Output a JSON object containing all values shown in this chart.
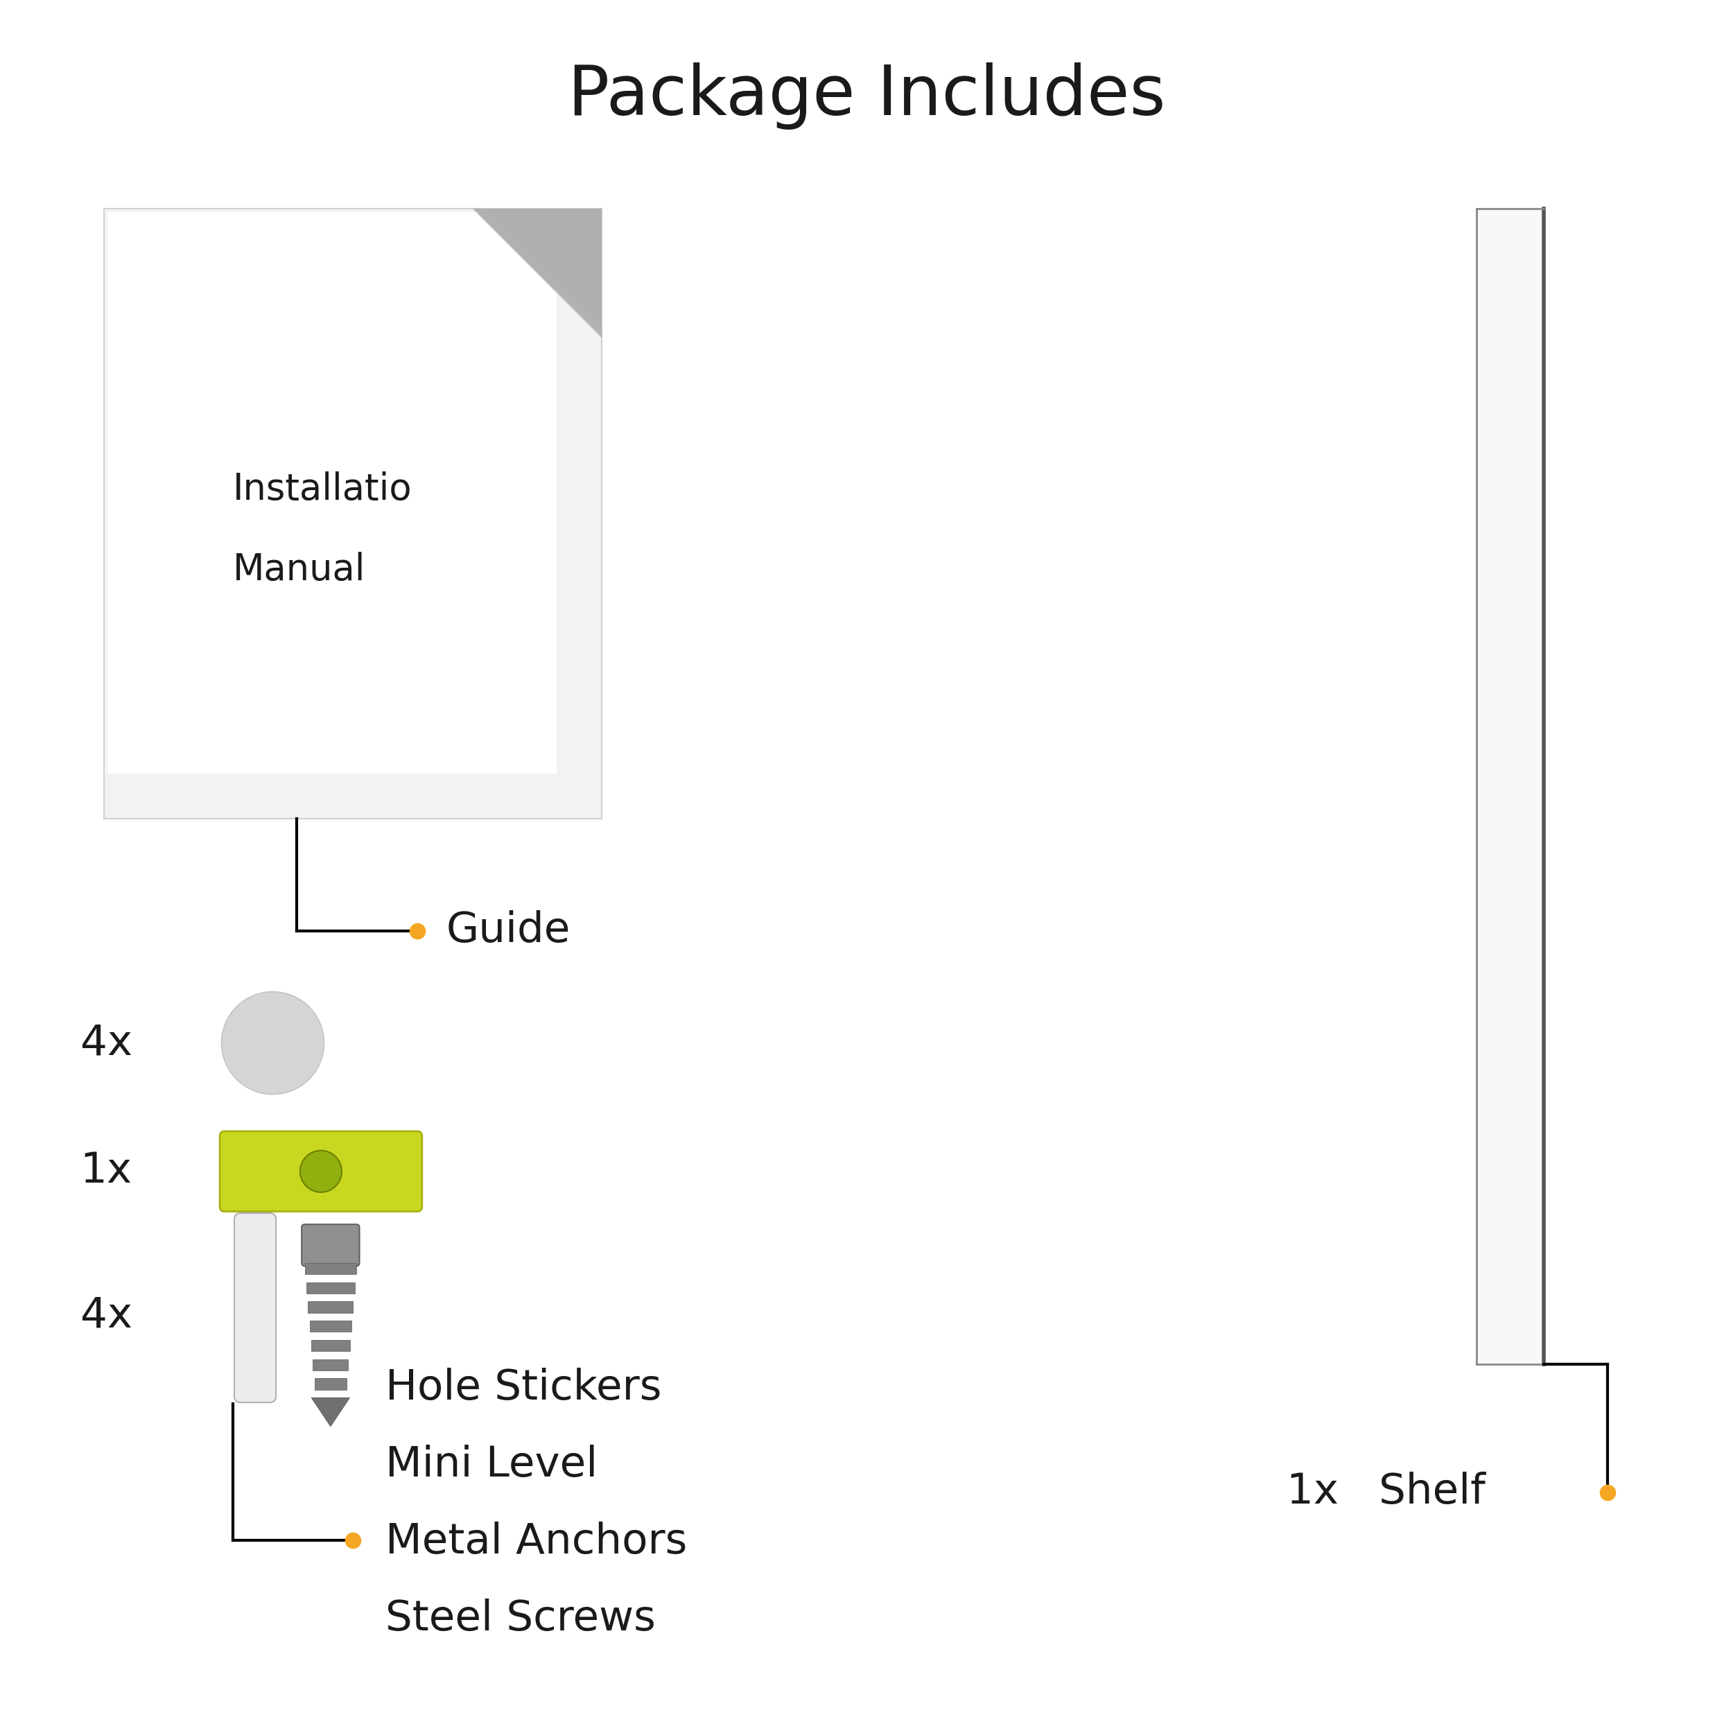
{
  "title": "Package Includes",
  "title_fontsize": 72,
  "bg_color": "#ffffff",
  "text_color": "#1a1a1a",
  "orange_dot_color": "#F5A623",
  "item_labels": [
    "Hole Stickers",
    "Mini Level",
    "Metal Anchors",
    "Steel Screws"
  ],
  "guide_label": "Guide",
  "shelf_label": "Shelf",
  "shelf_qty": "1x",
  "qty_4x_1": "4x",
  "qty_1x": "1x",
  "qty_4x_2": "4x",
  "label_fontsize": 44,
  "qty_fontsize": 44,
  "manual_text1": "Installatio",
  "manual_text2": "Manual"
}
